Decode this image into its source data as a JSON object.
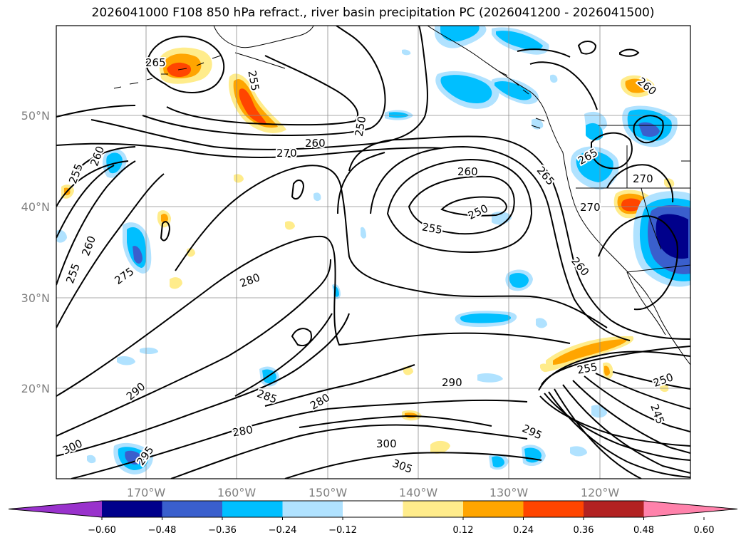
{
  "title": "2026041000 F108 850 hPa refract., river basin precipitation PC (2026041200 - 2026041500)",
  "lat_labels": [
    "50°N",
    "40°N",
    "30°N",
    "20°N"
  ],
  "lon_labels": [
    "170°W",
    "160°W",
    "150°W",
    "140°W",
    "130°W",
    "120°W"
  ],
  "contour_labels": [
    "265",
    "255",
    "250",
    "260",
    "270",
    "260",
    "255",
    "260",
    "260",
    "275",
    "255",
    "280",
    "260",
    "250",
    "255",
    "265",
    "265",
    "270",
    "270",
    "260",
    "260",
    "290",
    "285",
    "280",
    "290",
    "255",
    "250",
    "245",
    "300",
    "295",
    "280",
    "300",
    "305",
    "295"
  ],
  "colorbar": {
    "colors": [
      "#9932cc",
      "#00008b",
      "#3a5fcd",
      "#00bfff",
      "#b0e2ff",
      "#ffffff",
      "#ffec8b",
      "#ffa500",
      "#ff4500",
      "#b22222",
      "#ff82ab"
    ],
    "ticks": [
      "−0.60",
      "−0.48",
      "−0.36",
      "−0.24",
      "−0.12",
      "0.12",
      "0.24",
      "0.36",
      "0.48",
      "0.60"
    ]
  }
}
